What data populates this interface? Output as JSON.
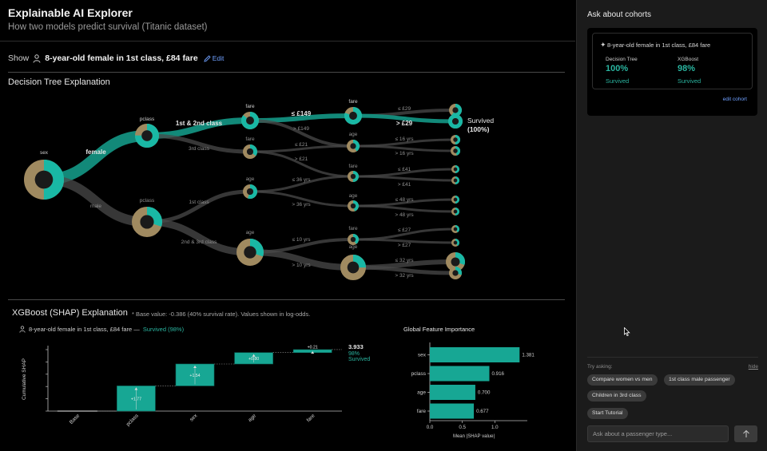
{
  "app": {
    "title": "Explainable AI Explorer",
    "subtitle": "How two models predict survival (Titanic dataset)"
  },
  "show": {
    "label": "Show",
    "persona": "8-year-old female in 1st class, £84 fare",
    "edit_label": "Edit"
  },
  "tree": {
    "title": "Decision Tree Explanation",
    "nodes": {
      "root": "sex",
      "pclass_f": "pclass",
      "pclass_m": "pclass",
      "fare1": "fare",
      "fare2": "fare",
      "fare3": "fare",
      "fare4": "fare",
      "age1": "age",
      "age2": "age",
      "age3": "age",
      "age4": "age"
    },
    "edges": {
      "female": "female",
      "male": "male",
      "c12": "1st & 2nd class",
      "c3": "3rd class",
      "c1": "1st class",
      "c23": "2nd & 3rd class",
      "le149": "≤ £149",
      "gt149": "> £149",
      "le21": "≤ £21",
      "gt21": "> £21",
      "le36": "≤ 36 yrs",
      "gt36": "> 36 yrs",
      "le10": "≤ 10 yrs",
      "gt10": "> 10 yrs",
      "le29": "≤ £29",
      "gt29": "> £29",
      "le16": "≤ 16 yrs",
      "gt16": "> 16 yrs",
      "le41": "≤ £41",
      "gt41": "> £41",
      "le48": "≤ 48 yrs",
      "gt48": "> 48 yrs",
      "le27": "≤ £27",
      "gt27": "> £27",
      "le32": "≤ 32 yrs",
      "gt32": "> 32 yrs"
    },
    "outcome_label": "Survived",
    "outcome_value": "(100%)",
    "colors": {
      "survived": "#19b8a5",
      "died": "#a08a60",
      "path": "#13907f",
      "branch": "#4a4a4a"
    }
  },
  "shap": {
    "title": "XGBoost (SHAP) Explanation",
    "note": "* Base value: -0.386 (40% survival rate). Values shown in log-odds.",
    "persona": "8-year-old female in 1st class, £84 fare —",
    "prediction": "Survived (98%)",
    "final_value": "3.933",
    "final_pct": "98%",
    "final_label": "Survived"
  },
  "chart_data": [
    {
      "type": "bar",
      "subtype": "waterfall",
      "ylabel": "Cumulative SHAP",
      "categories": [
        "Base",
        "pclass",
        "sex",
        "age",
        "fare"
      ],
      "values": [
        -0.386,
        1.77,
        1.54,
        0.8,
        0.21
      ],
      "value_labels": [
        "",
        "+1.77",
        "+1.54",
        "+0.80",
        "+0.21"
      ],
      "ylim": [
        -0.386,
        3.933
      ]
    },
    {
      "type": "bar",
      "orientation": "horizontal",
      "title": "Global Feature Importance",
      "xlabel": "Mean |SHAP value|",
      "categories": [
        "sex",
        "pclass",
        "age",
        "fare"
      ],
      "values": [
        1.381,
        0.916,
        0.7,
        0.677
      ],
      "value_labels": [
        "1.381",
        "0.916",
        "0.700",
        "0.677"
      ],
      "xticks": [
        "0.0",
        "0.5",
        "1.0"
      ],
      "xlim": [
        0,
        1.5
      ]
    }
  ],
  "sidebar": {
    "title": "Ask about cohorts",
    "cohort": {
      "name": "8-year-old female in 1st class, £84 fare",
      "model1": {
        "name": "Decision Tree",
        "value": "100%",
        "result": "Survived"
      },
      "model2": {
        "name": "XGBoost",
        "value": "98%",
        "result": "Survived"
      },
      "edit_label": "edit cohort"
    },
    "try_label": "Try asking:",
    "hide_label": "hide",
    "suggestions": [
      "Compare women vs men",
      "1st class male passenger",
      "Children in 3rd class",
      "Start Tutorial"
    ],
    "input_placeholder": "Ask about a passenger type..."
  },
  "icons": {
    "person": "person-icon",
    "pencil": "pencil-icon",
    "sparkle": "sparkle-icon",
    "send": "arrow-up-icon"
  }
}
